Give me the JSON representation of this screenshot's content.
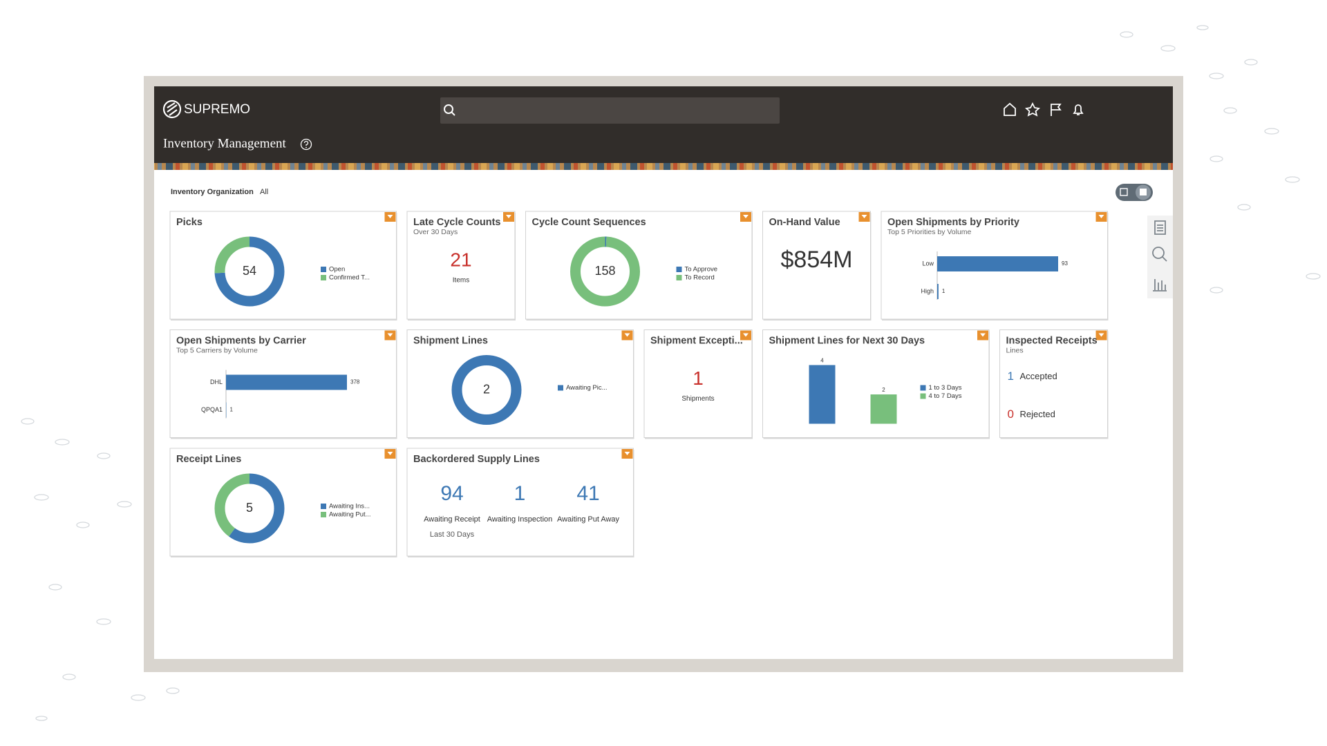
{
  "header": {
    "brand": "SUPREMO",
    "title": "Inventory Management"
  },
  "filter": {
    "label": "Inventory Organization",
    "value": "All"
  },
  "tiles": [
    {
      "title": "Picks",
      "type": "donut",
      "total": 54,
      "series": [
        {
          "name": "Open",
          "color": "#3d78b4",
          "value": 40
        },
        {
          "name": "Confirmed T...",
          "color": "#78bf7c",
          "value": 14
        }
      ]
    },
    {
      "title": "Late Cycle Counts",
      "subtitle": "Over 30 Days",
      "type": "kpi",
      "value": 21,
      "label": "Items",
      "color": "#c8302b"
    },
    {
      "title": "Cycle Count Sequences",
      "type": "donut",
      "total": 158,
      "series": [
        {
          "name": "To Approve",
          "color": "#3d78b4",
          "value": 1
        },
        {
          "name": "To Record",
          "color": "#78bf7c",
          "value": 157
        }
      ]
    },
    {
      "title": "On-Hand Value",
      "type": "kpi",
      "value": "$854M",
      "color": "#333333"
    },
    {
      "title": "Open Shipments by Priority",
      "subtitle": "Top 5 Priorities by Volume",
      "type": "hbar",
      "categories": [
        "Low",
        "High"
      ],
      "values": [
        93,
        1
      ],
      "color": "#3d78b4"
    },
    {
      "title": "Open Shipments by Carrier",
      "subtitle": "Top 5 Carriers by Volume",
      "type": "hbar",
      "categories": [
        "DHL",
        "QPQA1"
      ],
      "values": [
        378,
        1
      ],
      "color": "#3d78b4"
    },
    {
      "title": "Shipment Lines",
      "type": "donut",
      "total": 2,
      "series": [
        {
          "name": "Awaiting Pic...",
          "color": "#3d78b4",
          "value": 2
        }
      ]
    },
    {
      "title": "Shipment Excepti...",
      "type": "kpi",
      "value": 1,
      "label": "Shipments",
      "color": "#c8302b"
    },
    {
      "title": "Shipment Lines for Next 30 Days",
      "type": "vbar",
      "series": [
        {
          "name": "1 to 3 Days",
          "color": "#3d78b4",
          "value": 4
        },
        {
          "name": "4 to 7 Days",
          "color": "#78bf7c",
          "value": 2
        }
      ]
    },
    {
      "title": "Inspected Receipts",
      "subtitle": "Lines",
      "type": "list",
      "items": [
        {
          "value": 1,
          "label": "Accepted",
          "color": "#3d78b4"
        },
        {
          "value": 0,
          "label": "Rejected",
          "color": "#c8302b"
        }
      ]
    },
    {
      "title": "Receipt Lines",
      "type": "donut",
      "total": 5,
      "series": [
        {
          "name": "Awaiting Ins...",
          "color": "#3d78b4",
          "value": 3
        },
        {
          "name": "Awaiting Put...",
          "color": "#78bf7c",
          "value": 2
        }
      ]
    },
    {
      "title": "Backordered Supply Lines",
      "type": "multi",
      "color": "#3d78b4",
      "items": [
        {
          "value": 94,
          "label": "Awaiting Receipt",
          "note": "Last 30 Days"
        },
        {
          "value": 1,
          "label": "Awaiting Inspection"
        },
        {
          "value": 41,
          "label": "Awaiting Put Away"
        }
      ]
    }
  ]
}
